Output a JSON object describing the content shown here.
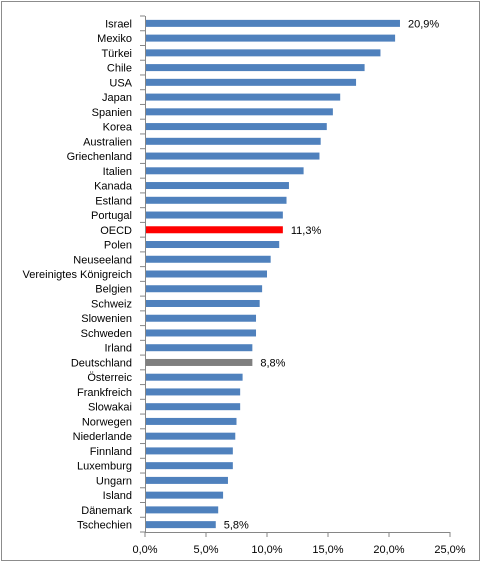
{
  "chart_data": {
    "type": "bar",
    "orientation": "horizontal",
    "categories": [
      "Israel",
      "Mexiko",
      "Türkei",
      "Chile",
      "USA",
      "Japan",
      "Spanien",
      "Korea",
      "Australien",
      "Griechenland",
      "Italien",
      "Kanada",
      "Estland",
      "Portugal",
      "OECD",
      "Polen",
      "Neuseeland",
      "Vereinigtes Königreich",
      "Belgien",
      "Schweiz",
      "Slowenien",
      "Schweden",
      "Irland",
      "Deutschland",
      "Österreic",
      "Frankfreich",
      "Slowakai",
      "Norwegen",
      "Niederlande",
      "Finnland",
      "Luxemburg",
      "Ungarn",
      "Island",
      "Dänemark",
      "Tschechien"
    ],
    "values": [
      20.9,
      20.5,
      19.3,
      18.0,
      17.3,
      16.0,
      15.4,
      14.9,
      14.4,
      14.3,
      13.0,
      11.8,
      11.6,
      11.3,
      11.3,
      11.0,
      10.3,
      10.0,
      9.6,
      9.4,
      9.1,
      9.1,
      8.8,
      8.8,
      8.0,
      7.8,
      7.8,
      7.5,
      7.4,
      7.2,
      7.2,
      6.8,
      6.4,
      6.0,
      5.8
    ],
    "bar_colors": {
      "default": "#4f81bd",
      "OECD": "#ff0000",
      "Deutschland": "#7f7f7f"
    },
    "data_labels": [
      {
        "category": "Israel",
        "text": "20,9%"
      },
      {
        "category": "OECD",
        "text": "11,3%"
      },
      {
        "category": "Deutschland",
        "text": "8,8%"
      },
      {
        "category": "Tschechien",
        "text": "5,8%"
      }
    ],
    "x_ticks": [
      {
        "value": 0,
        "label": "0,0%"
      },
      {
        "value": 5,
        "label": "5,0%"
      },
      {
        "value": 10,
        "label": "10,0%"
      },
      {
        "value": 15,
        "label": "15,0%"
      },
      {
        "value": 20,
        "label": "20,0%"
      },
      {
        "value": 25,
        "label": "25,0%"
      }
    ],
    "xlim": [
      0,
      25
    ],
    "grid": false,
    "legend": "none"
  }
}
